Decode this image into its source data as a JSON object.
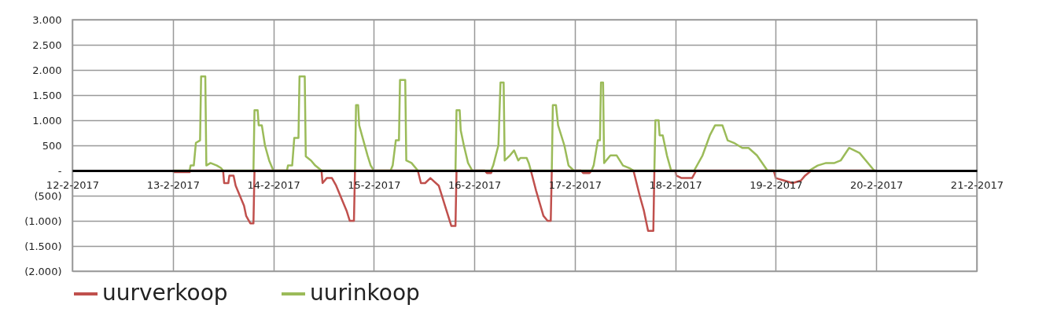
{
  "chart_data": {
    "type": "line",
    "xlim": [
      "2017-02-12",
      "2017-02-21"
    ],
    "xticks": [
      {
        "value": "2017-02-12",
        "label": "12-2-2017"
      },
      {
        "value": "2017-02-13",
        "label": "13-2-2017"
      },
      {
        "value": "2017-02-14",
        "label": "14-2-2017"
      },
      {
        "value": "2017-02-15",
        "label": "15-2-2017"
      },
      {
        "value": "2017-02-16",
        "label": "16-2-2017"
      },
      {
        "value": "2017-02-17",
        "label": "17-2-2017"
      },
      {
        "value": "2017-02-18",
        "label": "18-2-2017"
      },
      {
        "value": "2017-02-19",
        "label": "19-2-2017"
      },
      {
        "value": "2017-02-20",
        "label": "20-2-2017"
      },
      {
        "value": "2017-02-21",
        "label": "21-2-2017"
      }
    ],
    "ylim": [
      -2000,
      3000
    ],
    "yticks": [
      {
        "value": -2000,
        "label": "(2.000)"
      },
      {
        "value": -1500,
        "label": "(1.500)"
      },
      {
        "value": -1000,
        "label": "(1.000)"
      },
      {
        "value": -500,
        "label": "(500)"
      },
      {
        "value": 0,
        "label": "-"
      },
      {
        "value": 500,
        "label": "500"
      },
      {
        "value": 1000,
        "label": "1.000"
      },
      {
        "value": 1500,
        "label": "1.500"
      },
      {
        "value": 2000,
        "label": "2.000"
      },
      {
        "value": 2500,
        "label": "2.500"
      },
      {
        "value": 3000,
        "label": "3.000"
      }
    ],
    "grid": true,
    "legend": "bottom",
    "marker": "none",
    "line_style": "solid",
    "series": [
      {
        "name": "uurverkoop",
        "color": "#c0504d",
        "x": [
          "2017-02-13T00:00",
          "2017-02-13T04:00",
          "2017-02-13T04:15",
          "2017-02-13T12:00",
          "2017-02-13T12:15",
          "2017-02-13T13:15",
          "2017-02-13T13:30",
          "2017-02-13T14:30",
          "2017-02-13T15:00",
          "2017-02-13T16:00",
          "2017-02-13T17:00",
          "2017-02-13T17:30",
          "2017-02-13T18:30",
          "2017-02-13T19:15",
          "2017-02-13T19:30",
          "2017-02-14T11:30",
          "2017-02-14T11:45",
          "2017-02-14T12:45",
          "2017-02-14T14:00",
          "2017-02-14T15:00",
          "2017-02-14T16:30",
          "2017-02-14T17:30",
          "2017-02-14T18:15",
          "2017-02-14T19:15",
          "2017-02-14T19:30",
          "2017-02-15T10:30",
          "2017-02-15T11:15",
          "2017-02-15T12:15",
          "2017-02-15T13:30",
          "2017-02-15T15:30",
          "2017-02-15T17:00",
          "2017-02-15T18:30",
          "2017-02-15T19:30",
          "2017-02-15T19:45",
          "2017-02-16T02:30",
          "2017-02-16T03:00",
          "2017-02-16T04:00",
          "2017-02-16T04:15",
          "2017-02-16T13:30",
          "2017-02-16T14:45",
          "2017-02-16T16:30",
          "2017-02-16T17:30",
          "2017-02-16T18:15",
          "2017-02-16T18:30",
          "2017-02-17T01:30",
          "2017-02-17T02:00",
          "2017-02-17T03:30",
          "2017-02-17T04:00",
          "2017-02-17T14:00",
          "2017-02-17T15:30",
          "2017-02-17T16:30",
          "2017-02-17T17:30",
          "2017-02-17T18:45",
          "2017-02-17T19:00",
          "2017-02-18T00:00",
          "2017-02-18T00:15",
          "2017-02-18T01:30",
          "2017-02-18T04:00",
          "2017-02-18T05:00",
          "2017-02-18T23:30",
          "2017-02-19T00:00",
          "2017-02-19T02:00",
          "2017-02-19T04:00",
          "2017-02-19T06:00",
          "2017-02-19T07:00",
          "2017-02-19T08:30",
          "2017-02-20T00:00"
        ],
        "values": [
          -30,
          -30,
          0,
          0,
          -250,
          -250,
          -100,
          -100,
          -300,
          -500,
          -700,
          -900,
          -1050,
          -1050,
          0,
          0,
          -250,
          -150,
          -150,
          -300,
          -600,
          -800,
          -1000,
          -1000,
          0,
          0,
          -250,
          -250,
          -150,
          -300,
          -700,
          -1100,
          -1100,
          0,
          0,
          -50,
          -50,
          0,
          0,
          -400,
          -900,
          -1000,
          -1000,
          0,
          0,
          -50,
          -50,
          0,
          0,
          -500,
          -800,
          -1200,
          -1200,
          0,
          0,
          -100,
          -150,
          -150,
          0,
          0,
          -150,
          -200,
          -250,
          -200,
          -100,
          0,
          0
        ]
      },
      {
        "name": "uurinkoop",
        "color": "#9bbb59",
        "x": [
          "2017-02-13T00:00",
          "2017-02-13T04:00",
          "2017-02-13T04:15",
          "2017-02-13T05:00",
          "2017-02-13T05:30",
          "2017-02-13T06:30",
          "2017-02-13T06:45",
          "2017-02-13T07:45",
          "2017-02-13T08:00",
          "2017-02-13T09:00",
          "2017-02-13T10:30",
          "2017-02-13T11:30",
          "2017-02-13T12:00",
          "2017-02-13T19:15",
          "2017-02-13T19:30",
          "2017-02-13T20:15",
          "2017-02-13T20:30",
          "2017-02-13T21:15",
          "2017-02-13T22:00",
          "2017-02-13T23:00",
          "2017-02-14T00:00",
          "2017-02-14T03:15",
          "2017-02-14T03:30",
          "2017-02-14T04:30",
          "2017-02-14T05:00",
          "2017-02-14T06:00",
          "2017-02-14T06:15",
          "2017-02-14T07:30",
          "2017-02-14T07:45",
          "2017-02-14T09:00",
          "2017-02-14T10:00",
          "2017-02-14T11:30",
          "2017-02-14T19:30",
          "2017-02-14T19:45",
          "2017-02-14T20:15",
          "2017-02-14T20:30",
          "2017-02-14T21:30",
          "2017-02-14T22:30",
          "2017-02-14T23:15",
          "2017-02-15T00:00",
          "2017-02-15T04:00",
          "2017-02-15T04:30",
          "2017-02-15T05:15",
          "2017-02-15T06:00",
          "2017-02-15T06:15",
          "2017-02-15T07:30",
          "2017-02-15T07:45",
          "2017-02-15T09:00",
          "2017-02-15T10:30",
          "2017-02-15T19:30",
          "2017-02-15T19:45",
          "2017-02-15T20:30",
          "2017-02-15T20:45",
          "2017-02-15T21:30",
          "2017-02-15T22:30",
          "2017-02-15T23:30",
          "2017-02-16T04:00",
          "2017-02-16T04:30",
          "2017-02-16T05:45",
          "2017-02-16T06:15",
          "2017-02-16T07:00",
          "2017-02-16T07:15",
          "2017-02-16T08:30",
          "2017-02-16T09:30",
          "2017-02-16T10:30",
          "2017-02-16T11:00",
          "2017-02-16T12:30",
          "2017-02-16T13:00",
          "2017-02-16T13:30",
          "2017-02-16T18:30",
          "2017-02-16T18:45",
          "2017-02-16T19:30",
          "2017-02-16T20:00",
          "2017-02-16T21:30",
          "2017-02-16T22:30",
          "2017-02-16T23:45",
          "2017-02-17T04:00",
          "2017-02-17T04:30",
          "2017-02-17T05:30",
          "2017-02-17T06:00",
          "2017-02-17T06:15",
          "2017-02-17T06:45",
          "2017-02-17T07:00",
          "2017-02-17T08:30",
          "2017-02-17T10:00",
          "2017-02-17T11:30",
          "2017-02-17T13:00",
          "2017-02-17T14:00",
          "2017-02-17T19:00",
          "2017-02-17T19:15",
          "2017-02-17T20:00",
          "2017-02-17T20:15",
          "2017-02-17T21:00",
          "2017-02-17T22:00",
          "2017-02-17T23:00",
          "2017-02-18T04:30",
          "2017-02-18T06:30",
          "2017-02-18T08:15",
          "2017-02-18T09:30",
          "2017-02-18T11:15",
          "2017-02-18T12:30",
          "2017-02-18T14:00",
          "2017-02-18T16:00",
          "2017-02-18T17:30",
          "2017-02-18T19:30",
          "2017-02-18T22:00",
          "2017-02-19T08:00",
          "2017-02-19T10:00",
          "2017-02-19T12:00",
          "2017-02-19T14:00",
          "2017-02-19T15:30",
          "2017-02-19T17:30",
          "2017-02-19T20:00",
          "2017-02-19T23:30"
        ],
        "values": [
          0,
          0,
          100,
          100,
          550,
          600,
          1870,
          1870,
          100,
          150,
          100,
          50,
          0,
          0,
          1200,
          1200,
          900,
          900,
          500,
          200,
          0,
          0,
          100,
          100,
          650,
          650,
          1870,
          1870,
          280,
          200,
          100,
          0,
          0,
          1300,
          1300,
          900,
          600,
          300,
          100,
          0,
          0,
          100,
          600,
          600,
          1800,
          1800,
          200,
          150,
          0,
          0,
          1200,
          1200,
          800,
          500,
          150,
          0,
          0,
          100,
          500,
          1750,
          1750,
          200,
          300,
          400,
          200,
          250,
          250,
          150,
          0,
          0,
          1300,
          1300,
          900,
          500,
          100,
          0,
          0,
          100,
          600,
          600,
          1750,
          1750,
          150,
          300,
          300,
          100,
          50,
          0,
          0,
          1000,
          1000,
          700,
          700,
          300,
          0,
          0,
          300,
          700,
          900,
          900,
          600,
          550,
          450,
          450,
          300,
          0,
          0,
          100,
          150,
          150,
          200,
          450,
          350,
          0
        ]
      }
    ]
  }
}
